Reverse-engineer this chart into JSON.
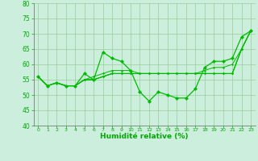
{
  "background_color": "#cceedd",
  "grid_color": "#99cc99",
  "line_color": "#00bb00",
  "marker_color": "#00bb00",
  "xlabel": "Humidité relative (%)",
  "xlabel_color": "#00aa00",
  "tick_color": "#00aa00",
  "spine_color": "#666666",
  "ylim": [
    40,
    80
  ],
  "yticks": [
    40,
    45,
    50,
    55,
    60,
    65,
    70,
    75,
    80
  ],
  "xlim": [
    -0.5,
    23.5
  ],
  "xticks": [
    0,
    1,
    2,
    3,
    4,
    5,
    6,
    7,
    8,
    9,
    10,
    11,
    12,
    13,
    14,
    15,
    16,
    17,
    18,
    19,
    20,
    21,
    22,
    23
  ],
  "series": [
    [
      56,
      53,
      54,
      53,
      53,
      57,
      55,
      64,
      62,
      61,
      58,
      51,
      48,
      51,
      50,
      49,
      49,
      52,
      59,
      61,
      61,
      62,
      69,
      71
    ],
    [
      56,
      53,
      54,
      53,
      53,
      55,
      56,
      57,
      58,
      58,
      58,
      57,
      57,
      57,
      57,
      57,
      57,
      57,
      58,
      59,
      59,
      60,
      65,
      71
    ],
    [
      56,
      53,
      54,
      53,
      53,
      55,
      55,
      56,
      57,
      57,
      57,
      57,
      57,
      57,
      57,
      57,
      57,
      57,
      57,
      57,
      57,
      57,
      65,
      71
    ],
    [
      56,
      53,
      54,
      53,
      53,
      55,
      55,
      56,
      57,
      57,
      57,
      57,
      57,
      57,
      57,
      57,
      57,
      57,
      57,
      57,
      57,
      57,
      65,
      71
    ],
    [
      56,
      53,
      54,
      53,
      53,
      55,
      55,
      56,
      57,
      57,
      57,
      57,
      57,
      57,
      57,
      57,
      57,
      57,
      57,
      57,
      57,
      57,
      65,
      71
    ]
  ]
}
